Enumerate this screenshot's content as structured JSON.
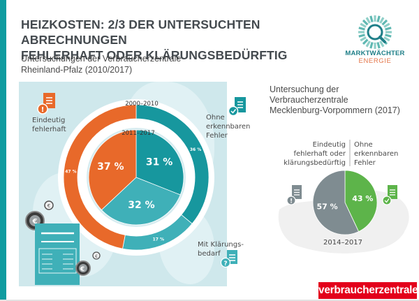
{
  "header": {
    "title_line1": "HEIZKOSTEN: 2/3 DER UNTERSUCHTEN ABRECHNUNGEN",
    "title_line2": "FEHLERHAFT ODER KLÄRUNGSBEDÜRFTIG",
    "subtitle_line1": "Untersuchungen der Verbraucherzentrale",
    "subtitle_line2": "Rheinland-Pfalz (2010/2017)"
  },
  "logo": {
    "name_line1": "MARKTWÄCHTER",
    "name_line2": "ENERGIE",
    "icon": "magnifier-sunburst-icon"
  },
  "footer": {
    "brand": "verbraucherzentrale"
  },
  "colors": {
    "orange": "#e8692a",
    "teal_dark": "#17979e",
    "teal_light": "#3fb0b8",
    "grey": "#7f8c91",
    "green": "#5db44a",
    "panel": "#cfe8ec",
    "brand_red": "#e3001b"
  },
  "left_labels": {
    "fehlerhaft_line1": "Eindeutig",
    "fehlerhaft_line2": "fehlerhaft",
    "ohne_line1": "Ohne",
    "ohne_line2": "erkennbaren",
    "ohne_line3": "Fehler",
    "klaerung_line1": "Mit Klärungs-",
    "klaerung_line2": "bedarf"
  },
  "right_labels": {
    "title_line1": "Untersuchung der",
    "title_line2": "Verbraucherzentrale",
    "title_line3": "Mecklenburg-Vorpommern (2017)",
    "left_line1": "Eindeutig",
    "left_line2": "fehlerhaft oder",
    "left_line3": "klärungsbedürftig",
    "right_line1": "Ohne",
    "right_line2": "erkennbaren",
    "right_line3": "Fehler"
  },
  "chart_data": [
    {
      "type": "pie",
      "variant": "donut",
      "title": "2000–2010",
      "region": "Rheinland-Pfalz",
      "categories": [
        "Eindeutig fehlerhaft",
        "Ohne erkennbaren Fehler",
        "Mit Klärungsbedarf"
      ],
      "values": [
        47,
        36,
        17
      ],
      "labels": [
        "47 %",
        "36 %",
        "17 %"
      ],
      "colors": [
        "#e8692a",
        "#17979e",
        "#3fb0b8"
      ],
      "unit": "%"
    },
    {
      "type": "pie",
      "title": "2011–2017",
      "region": "Rheinland-Pfalz",
      "categories": [
        "Eindeutig fehlerhaft",
        "Ohne erkennbaren Fehler",
        "Mit Klärungsbedarf"
      ],
      "values": [
        37,
        31,
        32
      ],
      "labels": [
        "37 %",
        "31 %",
        "32 %"
      ],
      "colors": [
        "#e8692a",
        "#17979e",
        "#3fb0b8"
      ],
      "unit": "%"
    },
    {
      "type": "pie",
      "title": "2014–2017",
      "region": "Mecklenburg-Vorpommern",
      "categories": [
        "Eindeutig fehlerhaft oder klärungsbedürftig",
        "Ohne erkennbaren Fehler"
      ],
      "values": [
        57,
        43
      ],
      "labels": [
        "57 %",
        "43 %"
      ],
      "colors": [
        "#7f8c91",
        "#5db44a"
      ],
      "unit": "%"
    }
  ]
}
